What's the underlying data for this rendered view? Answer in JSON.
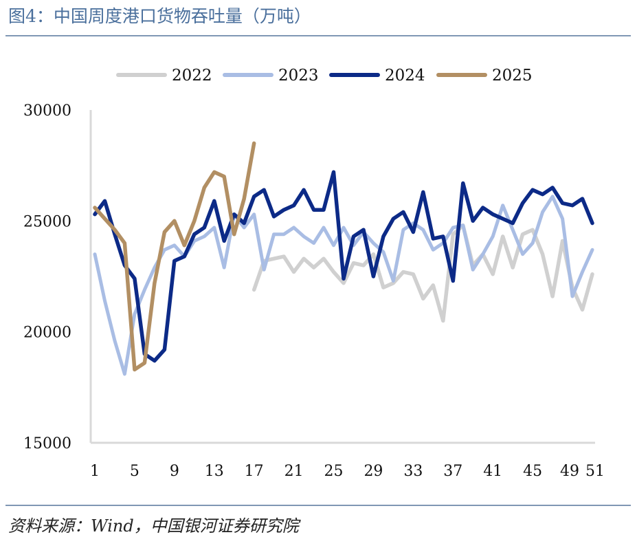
{
  "title": "图4：中国周度港口货物吞吐量（万吨）",
  "source": "资料来源：Wind，中国银河证券研究院",
  "chart_data": {
    "type": "line",
    "title": "图4：中国周度港口货物吞吐量（万吨）",
    "unit": "万吨",
    "xlabel": "",
    "ylabel": "",
    "ylim": [
      15000,
      30000
    ],
    "yticks": [
      15000,
      20000,
      25000,
      30000
    ],
    "xlim": [
      1,
      51
    ],
    "xticks": [
      1,
      5,
      9,
      13,
      17,
      21,
      25,
      29,
      33,
      37,
      41,
      45,
      49,
      51
    ],
    "grid": false,
    "legend_position": "top",
    "series": [
      {
        "name": "2022",
        "color": "#d0d0d0",
        "x": [
          17,
          18,
          19,
          20,
          21,
          22,
          23,
          24,
          25,
          26,
          27,
          28,
          29,
          30,
          31,
          32,
          33,
          34,
          35,
          36,
          37,
          38,
          39,
          40,
          41,
          42,
          43,
          44,
          45,
          46,
          47,
          48,
          49,
          50,
          51
        ],
        "values": [
          21900,
          23200,
          23300,
          23400,
          22700,
          23300,
          22900,
          23300,
          22700,
          22200,
          23100,
          23000,
          23500,
          22000,
          22200,
          22700,
          22600,
          21500,
          22100,
          20500,
          24400,
          24800,
          23000,
          23500,
          22600,
          24300,
          22900,
          24400,
          24600,
          23500,
          21600,
          24100,
          22000,
          21000,
          22600
        ]
      },
      {
        "name": "2023",
        "color": "#a9bde4",
        "x": [
          1,
          2,
          3,
          4,
          5,
          6,
          7,
          8,
          9,
          10,
          11,
          12,
          13,
          14,
          15,
          16,
          17,
          18,
          19,
          20,
          21,
          22,
          23,
          24,
          25,
          26,
          27,
          28,
          29,
          30,
          31,
          32,
          33,
          34,
          35,
          36,
          37,
          38,
          39,
          40,
          41,
          42,
          43,
          44,
          45,
          46,
          47,
          48,
          49,
          50,
          51
        ],
        "values": [
          23500,
          21400,
          19600,
          18100,
          20800,
          21900,
          22900,
          23700,
          23900,
          23400,
          24100,
          24300,
          24700,
          22900,
          25300,
          24700,
          25300,
          22800,
          24400,
          24400,
          24700,
          24300,
          24000,
          24700,
          23900,
          24700,
          23900,
          24500,
          24000,
          23600,
          22300,
          24600,
          24900,
          24600,
          23700,
          24000,
          24700,
          24800,
          22800,
          23500,
          24300,
          25700,
          24600,
          23500,
          24000,
          25400,
          26100,
          25100,
          21600,
          22700,
          23700
        ]
      },
      {
        "name": "2024",
        "color": "#0c2a87",
        "x": [
          1,
          2,
          3,
          4,
          5,
          6,
          7,
          8,
          9,
          10,
          11,
          12,
          13,
          14,
          15,
          16,
          17,
          18,
          19,
          20,
          21,
          22,
          23,
          24,
          25,
          26,
          27,
          28,
          29,
          30,
          31,
          32,
          33,
          34,
          35,
          36,
          37,
          38,
          39,
          40,
          41,
          42,
          43,
          44,
          45,
          46,
          47,
          48,
          49,
          50,
          51
        ],
        "values": [
          25300,
          25900,
          24400,
          23000,
          22400,
          19000,
          18700,
          19200,
          23200,
          23400,
          24400,
          24700,
          25900,
          24100,
          25300,
          24900,
          26100,
          26400,
          25200,
          25500,
          25700,
          26400,
          25500,
          25500,
          27200,
          22400,
          24300,
          24600,
          22500,
          24300,
          25100,
          25400,
          24500,
          26300,
          24200,
          24300,
          22300,
          26700,
          25000,
          25600,
          25300,
          25100,
          24900,
          25800,
          26400,
          26200,
          26500,
          25800,
          25700,
          26000,
          24900
        ]
      },
      {
        "name": "2025",
        "color": "#b28f63",
        "x": [
          1,
          2,
          3,
          4,
          5,
          6,
          7,
          8,
          9,
          10,
          11,
          12,
          13,
          14,
          15,
          16,
          17
        ],
        "values": [
          25600,
          25100,
          24600,
          24000,
          18300,
          18600,
          22200,
          24500,
          25000,
          23900,
          25000,
          26500,
          27200,
          27000,
          24400,
          26000,
          28500
        ]
      }
    ]
  }
}
